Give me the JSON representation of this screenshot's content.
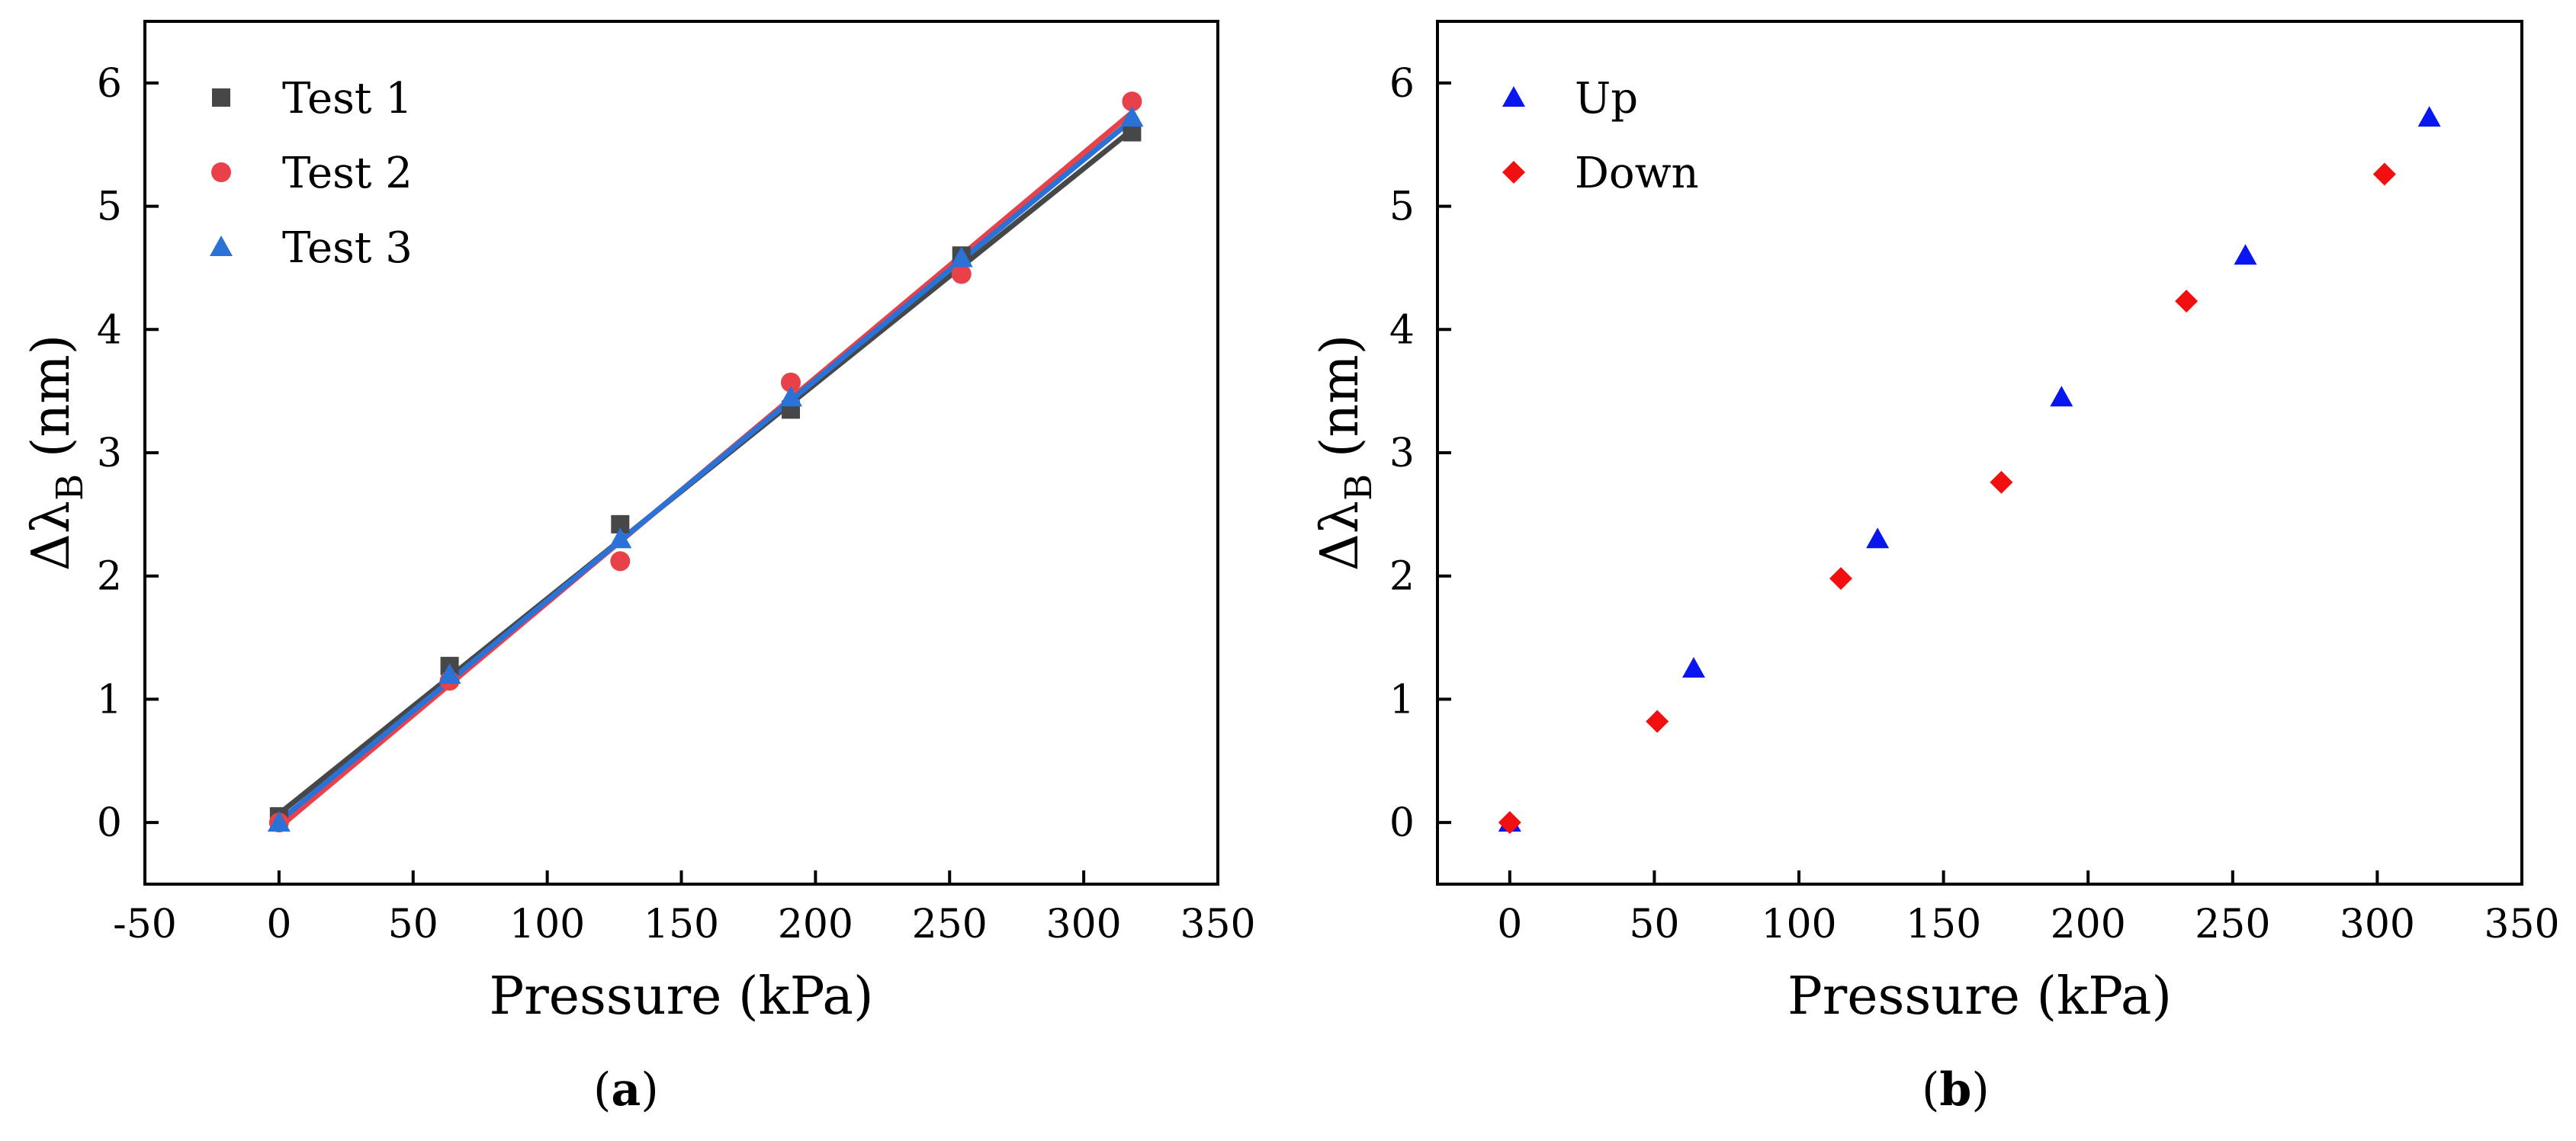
{
  "colors": {
    "test1": "#474747",
    "test2": "#e8414a",
    "test3": "#2a72d6",
    "up": "#0a16f0",
    "down": "#f20f10",
    "axis": "#000000"
  },
  "chart_data": [
    {
      "panel": "a",
      "caption_open": "(",
      "caption_letter": "a",
      "caption_close": ")",
      "type": "scatter",
      "xlabel": "Pressure (kPa)",
      "ylabel": "Δλ",
      "ylabel_sub": "B",
      "ylabel_unit": " (nm)",
      "xlim": [
        -50,
        350
      ],
      "ylim": [
        -0.5,
        6.5
      ],
      "xticks": [
        -50,
        0,
        50,
        100,
        150,
        200,
        250,
        300,
        350
      ],
      "xtick_labels": [
        "-50",
        "0",
        "50",
        "100",
        "150",
        "200",
        "250",
        "300",
        "350"
      ],
      "yticks": [
        0,
        1,
        2,
        3,
        4,
        5,
        6
      ],
      "ytick_labels": [
        "0",
        "1",
        "2",
        "3",
        "4",
        "5",
        "6"
      ],
      "legend_position": "top-left",
      "series": [
        {
          "name": "Test 1",
          "marker": "square",
          "color_key": "test1",
          "x": [
            0,
            63.6,
            127.2,
            190.8,
            254.4,
            318
          ],
          "y": [
            0.05,
            1.27,
            2.42,
            3.35,
            4.6,
            5.6
          ],
          "fit": [
            0.07,
            5.62
          ]
        },
        {
          "name": "Test 2",
          "marker": "circle",
          "color_key": "test2",
          "x": [
            0,
            63.6,
            127.2,
            190.8,
            254.4,
            318
          ],
          "y": [
            0.0,
            1.15,
            2.12,
            3.57,
            4.45,
            5.85
          ],
          "fit": [
            -0.04,
            5.76
          ]
        },
        {
          "name": "Test 3",
          "marker": "triangle",
          "color_key": "test3",
          "x": [
            0,
            63.6,
            127.2,
            190.8,
            254.4,
            318
          ],
          "y": [
            0.0,
            1.2,
            2.3,
            3.45,
            4.58,
            5.72
          ],
          "fit": [
            0.01,
            5.7
          ]
        }
      ]
    },
    {
      "panel": "b",
      "caption_open": "(",
      "caption_letter": "b",
      "caption_close": ")",
      "type": "scatter",
      "xlabel": "Pressure (kPa)",
      "ylabel": "Δλ",
      "ylabel_sub": "B",
      "ylabel_unit": " (nm)",
      "xlim": [
        -25,
        350
      ],
      "ylim": [
        -0.5,
        6.5
      ],
      "xticks": [
        0,
        50,
        100,
        150,
        200,
        250,
        300,
        350
      ],
      "xtick_labels": [
        "0",
        "50",
        "100",
        "150",
        "200",
        "250",
        "300",
        "350"
      ],
      "yticks": [
        0,
        1,
        2,
        3,
        4,
        5,
        6
      ],
      "ytick_labels": [
        "0",
        "1",
        "2",
        "3",
        "4",
        "5",
        "6"
      ],
      "legend_position": "top-left",
      "series": [
        {
          "name": "Up",
          "marker": "triangle",
          "color_key": "up",
          "x": [
            0,
            63.6,
            127.2,
            190.8,
            254.4,
            318
          ],
          "y": [
            0.0,
            1.25,
            2.3,
            3.45,
            4.6,
            5.72
          ]
        },
        {
          "name": "Down",
          "marker": "diamond",
          "color_key": "down",
          "x": [
            0,
            51,
            114.5,
            170,
            234,
            302.5
          ],
          "y": [
            0.0,
            0.82,
            1.98,
            2.76,
            4.23,
            5.26
          ]
        }
      ]
    }
  ]
}
